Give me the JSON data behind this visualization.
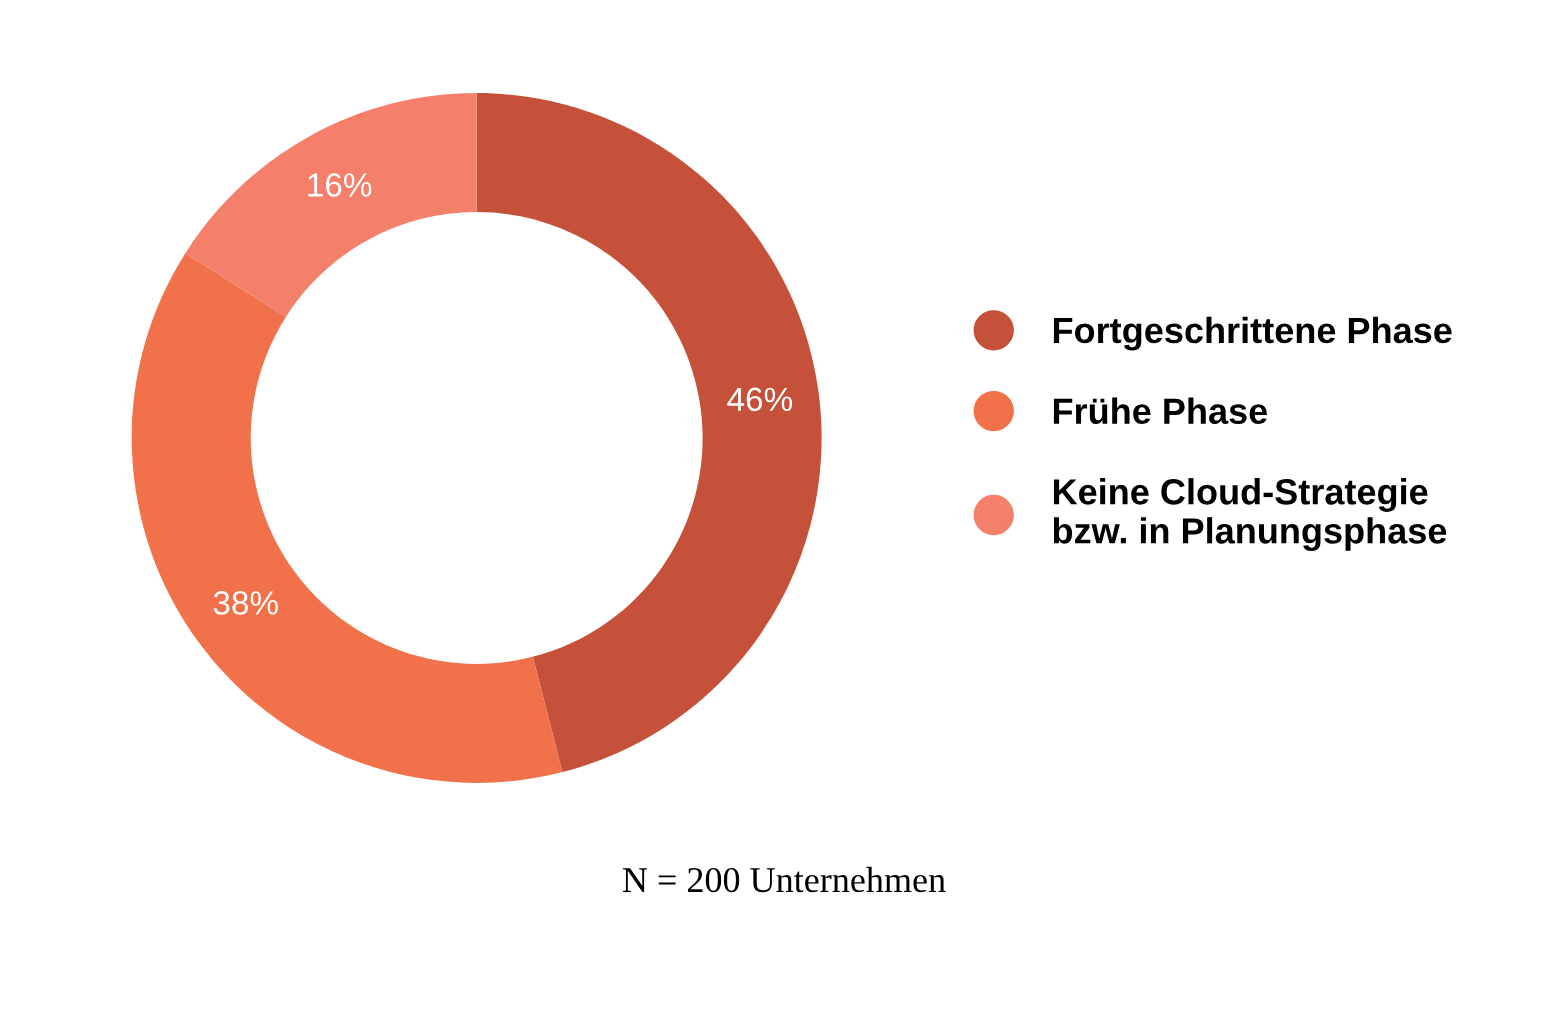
{
  "chart_data": {
    "type": "donut",
    "categories": [
      "Fortgeschrittene Phase",
      "Frühe Phase",
      "Keine Cloud-Strategie\nbzw. in Planungsphase"
    ],
    "values": [
      46,
      38,
      16
    ],
    "colors": [
      "#c5513a",
      "#f0714a",
      "#f47f6b"
    ],
    "value_labels": [
      "46%",
      "38%",
      "16%"
    ],
    "legend": "right",
    "annotations": [
      "N = 200 Unternehmen"
    ]
  }
}
